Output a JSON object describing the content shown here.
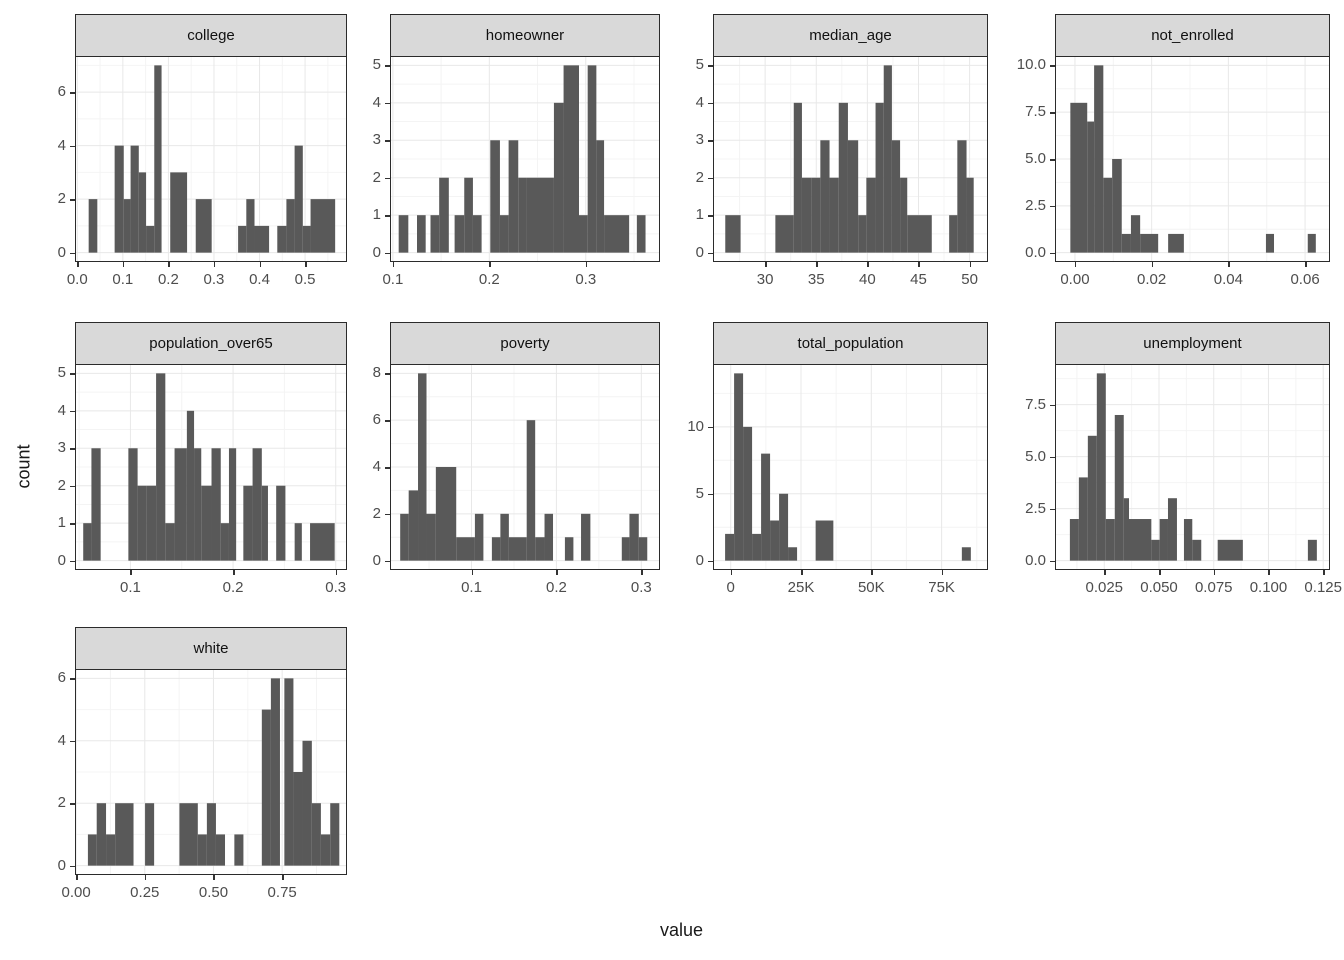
{
  "figure": {
    "x_axis_title": "value",
    "y_axis_title": "count"
  },
  "style": {
    "bar_color": "#595959",
    "strip_bg": "#d9d9d9",
    "panel_bg": "#ffffff",
    "panel_border": "#2b2b2b",
    "grid_major": "#e8e8e8",
    "grid_minor": "#f4f4f4",
    "tick_color": "#333333",
    "tick_text_color": "#4d4d4d"
  },
  "chart_data": [
    {
      "type": "bar",
      "title": "college",
      "row": 0,
      "col": 0,
      "xlim": [
        -0.005,
        0.592
      ],
      "ylim": [
        -0.35,
        7.35
      ],
      "x_ticks": [
        {
          "v": 0.0,
          "label": "0.0"
        },
        {
          "v": 0.1,
          "label": "0.1"
        },
        {
          "v": 0.2,
          "label": "0.2"
        },
        {
          "v": 0.3,
          "label": "0.3"
        },
        {
          "v": 0.4,
          "label": "0.4"
        },
        {
          "v": 0.5,
          "label": "0.5"
        }
      ],
      "y_ticks": [
        {
          "v": 0,
          "label": "0"
        },
        {
          "v": 2,
          "label": "2"
        },
        {
          "v": 4,
          "label": "4"
        },
        {
          "v": 6,
          "label": "6"
        }
      ],
      "bars": [
        [
          0.025,
          0.044,
          2
        ],
        [
          0.082,
          0.102,
          4
        ],
        [
          0.102,
          0.117,
          2
        ],
        [
          0.117,
          0.135,
          4
        ],
        [
          0.135,
          0.151,
          3
        ],
        [
          0.151,
          0.169,
          1
        ],
        [
          0.169,
          0.185,
          7
        ],
        [
          0.204,
          0.241,
          3
        ],
        [
          0.26,
          0.295,
          2
        ],
        [
          0.353,
          0.371,
          1
        ],
        [
          0.371,
          0.389,
          2
        ],
        [
          0.389,
          0.421,
          1
        ],
        [
          0.439,
          0.459,
          1
        ],
        [
          0.459,
          0.477,
          2
        ],
        [
          0.477,
          0.495,
          4
        ],
        [
          0.495,
          0.512,
          1
        ],
        [
          0.512,
          0.566,
          2
        ]
      ]
    },
    {
      "type": "bar",
      "title": "homeowner",
      "row": 0,
      "col": 1,
      "xlim": [
        0.097,
        0.377
      ],
      "ylim": [
        -0.25,
        5.25
      ],
      "x_ticks": [
        {
          "v": 0.1,
          "label": "0.1"
        },
        {
          "v": 0.2,
          "label": "0.2"
        },
        {
          "v": 0.3,
          "label": "0.3"
        }
      ],
      "y_ticks": [
        {
          "v": 0,
          "label": "0"
        },
        {
          "v": 1,
          "label": "1"
        },
        {
          "v": 2,
          "label": "2"
        },
        {
          "v": 3,
          "label": "3"
        },
        {
          "v": 4,
          "label": "4"
        },
        {
          "v": 5,
          "label": "5"
        }
      ],
      "bars": [
        [
          0.106,
          0.116,
          1
        ],
        [
          0.125,
          0.134,
          1
        ],
        [
          0.139,
          0.148,
          1
        ],
        [
          0.148,
          0.158,
          2
        ],
        [
          0.164,
          0.174,
          1
        ],
        [
          0.174,
          0.183,
          2
        ],
        [
          0.183,
          0.192,
          1
        ],
        [
          0.201,
          0.211,
          3
        ],
        [
          0.211,
          0.22,
          1
        ],
        [
          0.22,
          0.23,
          3
        ],
        [
          0.23,
          0.239,
          2
        ],
        [
          0.239,
          0.267,
          2
        ],
        [
          0.267,
          0.277,
          4
        ],
        [
          0.277,
          0.293,
          5
        ],
        [
          0.293,
          0.302,
          1
        ],
        [
          0.302,
          0.311,
          5
        ],
        [
          0.311,
          0.319,
          3
        ],
        [
          0.319,
          0.345,
          1
        ],
        [
          0.353,
          0.362,
          1
        ]
      ]
    },
    {
      "type": "bar",
      "title": "median_age",
      "row": 0,
      "col": 2,
      "xlim": [
        24.9,
        51.8
      ],
      "ylim": [
        -0.25,
        5.25
      ],
      "x_ticks": [
        {
          "v": 30,
          "label": "30"
        },
        {
          "v": 35,
          "label": "35"
        },
        {
          "v": 40,
          "label": "40"
        },
        {
          "v": 45,
          "label": "45"
        },
        {
          "v": 50,
          "label": "50"
        }
      ],
      "y_ticks": [
        {
          "v": 0,
          "label": "0"
        },
        {
          "v": 1,
          "label": "1"
        },
        {
          "v": 2,
          "label": "2"
        },
        {
          "v": 3,
          "label": "3"
        },
        {
          "v": 4,
          "label": "4"
        },
        {
          "v": 5,
          "label": "5"
        }
      ],
      "bars": [
        [
          26.1,
          27.6,
          1
        ],
        [
          31.0,
          32.8,
          1
        ],
        [
          32.8,
          33.6,
          4
        ],
        [
          33.6,
          34.5,
          2
        ],
        [
          34.5,
          35.4,
          2
        ],
        [
          35.4,
          36.3,
          3
        ],
        [
          36.3,
          37.2,
          2
        ],
        [
          37.2,
          38.1,
          4
        ],
        [
          38.1,
          39.1,
          3
        ],
        [
          39.1,
          39.9,
          1
        ],
        [
          39.9,
          40.8,
          2
        ],
        [
          40.8,
          41.6,
          4
        ],
        [
          41.6,
          42.4,
          5
        ],
        [
          42.4,
          43.2,
          3
        ],
        [
          43.2,
          43.9,
          2
        ],
        [
          43.9,
          46.3,
          1
        ],
        [
          48.0,
          48.8,
          1
        ],
        [
          48.8,
          49.7,
          3
        ],
        [
          49.7,
          50.4,
          2
        ]
      ]
    },
    {
      "type": "bar",
      "title": "not_enrolled",
      "row": 0,
      "col": 3,
      "xlim": [
        -0.0052,
        0.0665
      ],
      "ylim": [
        -0.5,
        10.5
      ],
      "x_ticks": [
        {
          "v": 0.0,
          "label": "0.00"
        },
        {
          "v": 0.02,
          "label": "0.02"
        },
        {
          "v": 0.04,
          "label": "0.04"
        },
        {
          "v": 0.06,
          "label": "0.06"
        }
      ],
      "y_ticks": [
        {
          "v": 0,
          "label": "0.0"
        },
        {
          "v": 2.5,
          "label": "2.5"
        },
        {
          "v": 5,
          "label": "5.0"
        },
        {
          "v": 7.5,
          "label": "7.5"
        },
        {
          "v": 10,
          "label": "10.0"
        }
      ],
      "bars": [
        [
          -0.0012,
          0.0032,
          8
        ],
        [
          0.0032,
          0.005,
          7
        ],
        [
          0.005,
          0.0074,
          10
        ],
        [
          0.0074,
          0.0097,
          4
        ],
        [
          0.0097,
          0.0122,
          5
        ],
        [
          0.0122,
          0.0146,
          1
        ],
        [
          0.0146,
          0.017,
          2
        ],
        [
          0.017,
          0.0217,
          1
        ],
        [
          0.0243,
          0.0284,
          1
        ],
        [
          0.0498,
          0.0519,
          1
        ],
        [
          0.0607,
          0.0628,
          1
        ]
      ]
    },
    {
      "type": "bar",
      "title": "population_over65",
      "row": 1,
      "col": 0,
      "xlim": [
        0.046,
        0.311
      ],
      "ylim": [
        -0.25,
        5.25
      ],
      "x_ticks": [
        {
          "v": 0.1,
          "label": "0.1"
        },
        {
          "v": 0.2,
          "label": "0.2"
        },
        {
          "v": 0.3,
          "label": "0.3"
        }
      ],
      "y_ticks": [
        {
          "v": 0,
          "label": "0"
        },
        {
          "v": 1,
          "label": "1"
        },
        {
          "v": 2,
          "label": "2"
        },
        {
          "v": 3,
          "label": "3"
        },
        {
          "v": 4,
          "label": "4"
        },
        {
          "v": 5,
          "label": "5"
        }
      ],
      "bars": [
        [
          0.054,
          0.062,
          1
        ],
        [
          0.062,
          0.071,
          3
        ],
        [
          0.098,
          0.107,
          3
        ],
        [
          0.107,
          0.116,
          2
        ],
        [
          0.116,
          0.125,
          2
        ],
        [
          0.125,
          0.134,
          5
        ],
        [
          0.134,
          0.143,
          1
        ],
        [
          0.143,
          0.155,
          3
        ],
        [
          0.155,
          0.162,
          4
        ],
        [
          0.162,
          0.169,
          3
        ],
        [
          0.169,
          0.179,
          2
        ],
        [
          0.179,
          0.188,
          3
        ],
        [
          0.188,
          0.196,
          1
        ],
        [
          0.196,
          0.203,
          3
        ],
        [
          0.21,
          0.219,
          2
        ],
        [
          0.219,
          0.228,
          3
        ],
        [
          0.228,
          0.234,
          2
        ],
        [
          0.242,
          0.251,
          2
        ],
        [
          0.26,
          0.267,
          1
        ],
        [
          0.275,
          0.299,
          1
        ]
      ]
    },
    {
      "type": "bar",
      "title": "poverty",
      "row": 1,
      "col": 1,
      "xlim": [
        0.004,
        0.322
      ],
      "ylim": [
        -0.4,
        8.4
      ],
      "x_ticks": [
        {
          "v": 0.1,
          "label": "0.1"
        },
        {
          "v": 0.2,
          "label": "0.2"
        },
        {
          "v": 0.3,
          "label": "0.3"
        }
      ],
      "y_ticks": [
        {
          "v": 0,
          "label": "0"
        },
        {
          "v": 2,
          "label": "2"
        },
        {
          "v": 4,
          "label": "4"
        },
        {
          "v": 6,
          "label": "6"
        },
        {
          "v": 8,
          "label": "8"
        }
      ],
      "bars": [
        [
          0.016,
          0.026,
          2
        ],
        [
          0.026,
          0.037,
          3
        ],
        [
          0.037,
          0.047,
          8
        ],
        [
          0.047,
          0.058,
          2
        ],
        [
          0.058,
          0.082,
          4
        ],
        [
          0.082,
          0.104,
          1
        ],
        [
          0.104,
          0.114,
          2
        ],
        [
          0.124,
          0.134,
          1
        ],
        [
          0.134,
          0.144,
          2
        ],
        [
          0.144,
          0.165,
          1
        ],
        [
          0.165,
          0.175,
          6
        ],
        [
          0.175,
          0.186,
          1
        ],
        [
          0.186,
          0.196,
          2
        ],
        [
          0.21,
          0.22,
          1
        ],
        [
          0.229,
          0.24,
          2
        ],
        [
          0.277,
          0.286,
          1
        ],
        [
          0.286,
          0.297,
          2
        ],
        [
          0.297,
          0.307,
          1
        ]
      ]
    },
    {
      "type": "bar",
      "title": "total_population",
      "row": 1,
      "col": 2,
      "xlim": [
        -6.3,
        91.5
      ],
      "ylim": [
        -0.7,
        14.7
      ],
      "x_ticks": [
        {
          "v": 0,
          "label": "0"
        },
        {
          "v": 25,
          "label": "25K"
        },
        {
          "v": 50,
          "label": "50K"
        },
        {
          "v": 75,
          "label": "75K"
        }
      ],
      "y_ticks": [
        {
          "v": 0,
          "label": "0"
        },
        {
          "v": 5,
          "label": "5"
        },
        {
          "v": 10,
          "label": "10"
        }
      ],
      "bars": [
        [
          -2.0,
          1.2,
          2
        ],
        [
          1.2,
          4.4,
          14
        ],
        [
          4.4,
          7.6,
          10
        ],
        [
          7.6,
          10.8,
          2
        ],
        [
          10.8,
          14.0,
          8
        ],
        [
          14.0,
          17.2,
          3
        ],
        [
          17.2,
          20.4,
          5
        ],
        [
          20.4,
          23.6,
          1
        ],
        [
          30.2,
          36.5,
          3
        ],
        [
          82.2,
          85.4,
          1
        ]
      ]
    },
    {
      "type": "bar",
      "title": "unemployment",
      "row": 1,
      "col": 3,
      "xlim": [
        0.0025,
        0.1281
      ],
      "ylim": [
        -0.45,
        9.45
      ],
      "x_ticks": [
        {
          "v": 0.025,
          "label": "0.025"
        },
        {
          "v": 0.05,
          "label": "0.050"
        },
        {
          "v": 0.075,
          "label": "0.075"
        },
        {
          "v": 0.1,
          "label": "0.100"
        },
        {
          "v": 0.125,
          "label": "0.125"
        }
      ],
      "y_ticks": [
        {
          "v": 0,
          "label": "0.0"
        },
        {
          "v": 2.5,
          "label": "2.5"
        },
        {
          "v": 5,
          "label": "5.0"
        },
        {
          "v": 7.5,
          "label": "7.5"
        }
      ],
      "bars": [
        [
          0.0093,
          0.0134,
          2
        ],
        [
          0.0134,
          0.0175,
          4
        ],
        [
          0.0175,
          0.0216,
          6
        ],
        [
          0.0216,
          0.0257,
          9
        ],
        [
          0.0257,
          0.0298,
          2
        ],
        [
          0.0298,
          0.0339,
          7
        ],
        [
          0.0339,
          0.0363,
          3
        ],
        [
          0.0363,
          0.0465,
          2
        ],
        [
          0.0465,
          0.0503,
          1
        ],
        [
          0.0503,
          0.0541,
          2
        ],
        [
          0.0541,
          0.0582,
          3
        ],
        [
          0.0614,
          0.0652,
          2
        ],
        [
          0.0652,
          0.0693,
          1
        ],
        [
          0.0768,
          0.0883,
          1
        ],
        [
          0.118,
          0.1221,
          1
        ]
      ]
    },
    {
      "type": "bar",
      "title": "white",
      "row": 2,
      "col": 0,
      "xlim": [
        -0.004,
        0.986
      ],
      "ylim": [
        -0.3,
        6.3
      ],
      "x_ticks": [
        {
          "v": 0.0,
          "label": "0.00"
        },
        {
          "v": 0.25,
          "label": "0.25"
        },
        {
          "v": 0.5,
          "label": "0.50"
        },
        {
          "v": 0.75,
          "label": "0.75"
        }
      ],
      "y_ticks": [
        {
          "v": 0,
          "label": "0"
        },
        {
          "v": 2,
          "label": "2"
        },
        {
          "v": 4,
          "label": "4"
        },
        {
          "v": 6,
          "label": "6"
        }
      ],
      "bars": [
        [
          0.043,
          0.075,
          1
        ],
        [
          0.075,
          0.109,
          2
        ],
        [
          0.109,
          0.142,
          1
        ],
        [
          0.142,
          0.209,
          2
        ],
        [
          0.251,
          0.284,
          2
        ],
        [
          0.376,
          0.443,
          2
        ],
        [
          0.443,
          0.476,
          1
        ],
        [
          0.476,
          0.509,
          2
        ],
        [
          0.509,
          0.542,
          1
        ],
        [
          0.576,
          0.609,
          1
        ],
        [
          0.676,
          0.709,
          5
        ],
        [
          0.709,
          0.742,
          6
        ],
        [
          0.758,
          0.791,
          6
        ],
        [
          0.791,
          0.824,
          3
        ],
        [
          0.824,
          0.858,
          4
        ],
        [
          0.858,
          0.891,
          2
        ],
        [
          0.891,
          0.925,
          1
        ],
        [
          0.925,
          0.958,
          2
        ]
      ]
    }
  ]
}
